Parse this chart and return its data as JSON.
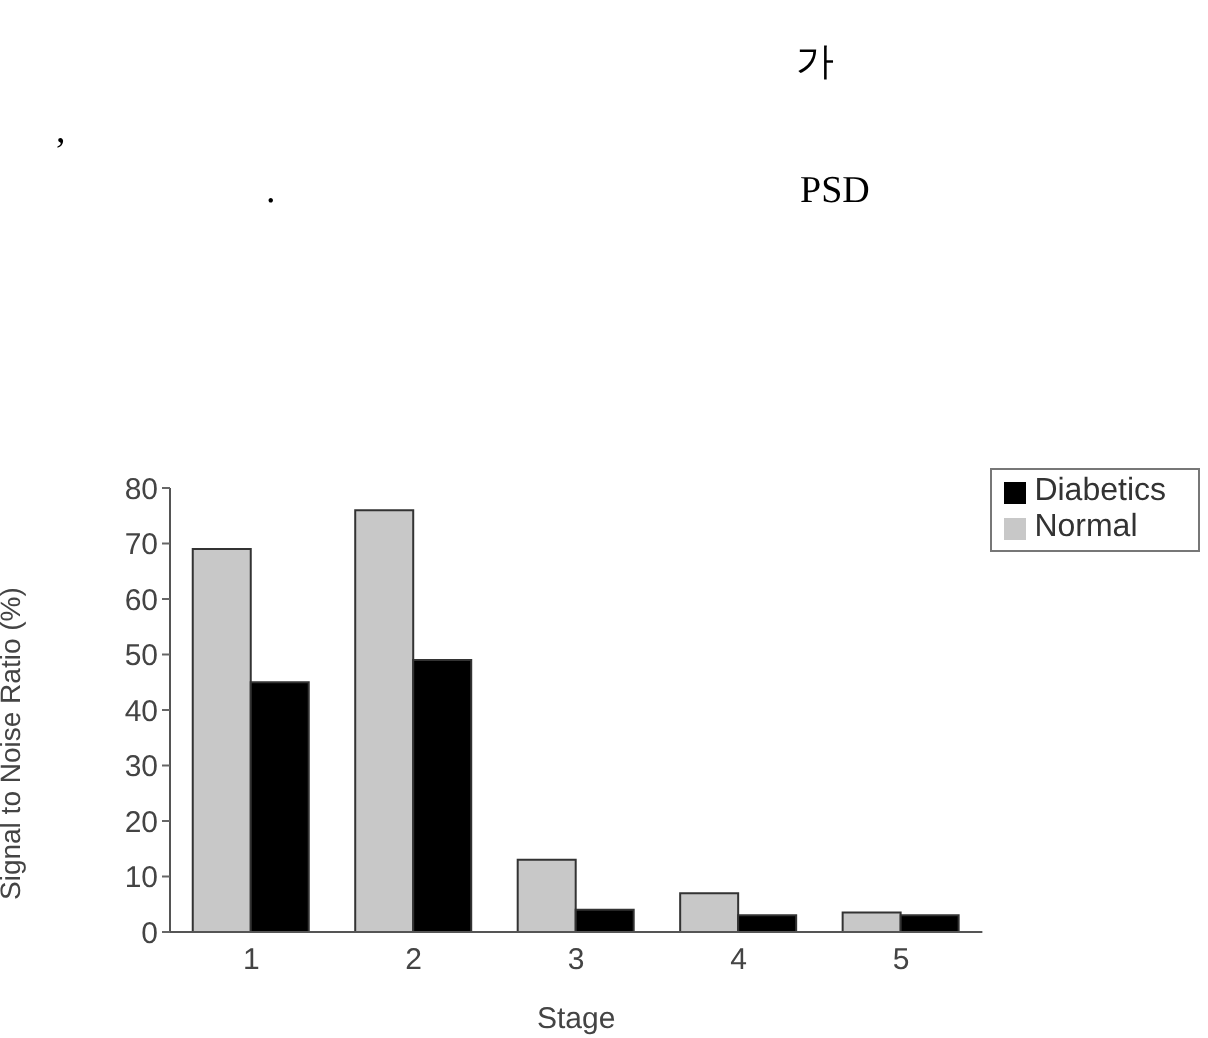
{
  "chart_data": {
    "type": "bar",
    "xlabel": "Stage",
    "ylabel": "Signal to Noise Ratio (%)",
    "annotations": [
      "가",
      ",",
      ".",
      "PSD"
    ],
    "categories": [
      "1",
      "2",
      "3",
      "4",
      "5"
    ],
    "series": [
      {
        "name": "Normal",
        "color": "#c8c8c8",
        "values": [
          69,
          76,
          13,
          7,
          3.5
        ]
      },
      {
        "name": "Diabetics",
        "color": "#000000",
        "values": [
          45,
          49,
          4,
          3,
          3
        ]
      }
    ],
    "ylim": [
      0,
      80
    ],
    "yticks": [
      0,
      10,
      20,
      30,
      40,
      50,
      60,
      70,
      80
    ],
    "legend": "top right"
  }
}
